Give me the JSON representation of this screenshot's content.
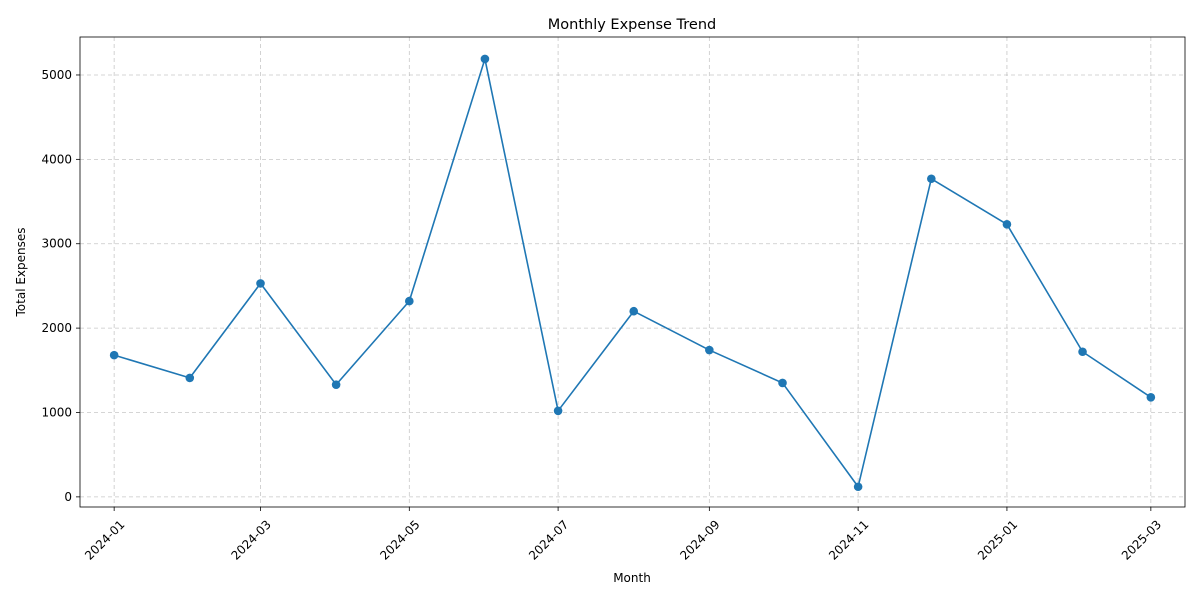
{
  "chart_data": {
    "type": "line",
    "title": "Monthly Expense Trend",
    "xlabel": "Month",
    "ylabel": "Total Expenses",
    "x_tick_labels": [
      "2024-01",
      "2024-03",
      "2024-05",
      "2024-07",
      "2024-09",
      "2024-11",
      "2025-01",
      "2025-03"
    ],
    "y_ticks": [
      0,
      1000,
      2000,
      3000,
      4000,
      5000
    ],
    "ylim": [
      -120,
      5450
    ],
    "xlim": [
      "2023-12-18",
      "2025-03-15"
    ],
    "grid": true,
    "series": [
      {
        "color": "#1f77b4",
        "marker": "circle",
        "x": [
          "2024-01",
          "2024-02",
          "2024-03",
          "2024-04",
          "2024-05",
          "2024-06",
          "2024-07",
          "2024-08",
          "2024-09",
          "2024-10",
          "2024-11",
          "2024-12",
          "2025-01",
          "2025-02",
          "2025-03"
        ],
        "values": [
          1680,
          1410,
          2530,
          1330,
          2320,
          5190,
          1020,
          2200,
          1740,
          1350,
          120,
          3770,
          3230,
          1720,
          1180
        ]
      }
    ]
  }
}
